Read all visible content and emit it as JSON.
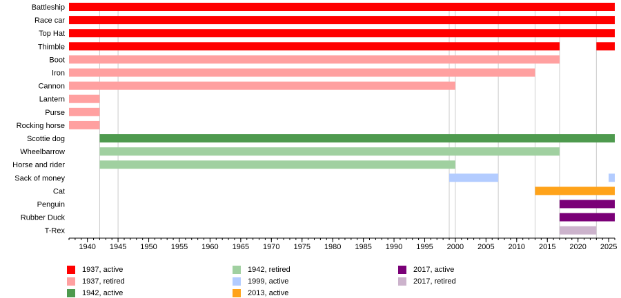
{
  "chart_data": {
    "type": "timeline",
    "x_range": [
      1937,
      2026
    ],
    "x_ticks": [
      "1940",
      "1945",
      "1950",
      "1955",
      "1960",
      "1965",
      "1970",
      "1975",
      "1980",
      "1985",
      "1990",
      "1995",
      "2000",
      "2005",
      "2010",
      "2015",
      "2020",
      "2025"
    ],
    "categories": [
      "Battleship",
      "Race car",
      "Top Hat",
      "Thimble",
      "Boot",
      "Iron",
      "Cannon",
      "Lantern",
      "Purse",
      "Rocking horse",
      "Scottie dog",
      "Wheelbarrow",
      "Horse and rider",
      "Sack of money",
      "Cat",
      "Penguin",
      "Rubber Duck",
      "T-Rex"
    ],
    "bars": [
      {
        "token": "Battleship",
        "start": 1937,
        "end": 2026,
        "group": "1937, active"
      },
      {
        "token": "Race car",
        "start": 1937,
        "end": 2026,
        "group": "1937, active"
      },
      {
        "token": "Top Hat",
        "start": 1937,
        "end": 2026,
        "group": "1937, active"
      },
      {
        "token": "Thimble",
        "start": 1937,
        "end": 2017,
        "group": "1937, active"
      },
      {
        "token": "Thimble",
        "start": 2023,
        "end": 2026,
        "group": "1937, active"
      },
      {
        "token": "Boot",
        "start": 1937,
        "end": 2017,
        "group": "1937, retired"
      },
      {
        "token": "Iron",
        "start": 1937,
        "end": 2013,
        "group": "1937, retired"
      },
      {
        "token": "Cannon",
        "start": 1937,
        "end": 2000,
        "group": "1937, retired"
      },
      {
        "token": "Lantern",
        "start": 1937,
        "end": 1942,
        "group": "1937, retired"
      },
      {
        "token": "Purse",
        "start": 1937,
        "end": 1942,
        "group": "1937, retired"
      },
      {
        "token": "Rocking horse",
        "start": 1937,
        "end": 1942,
        "group": "1937, retired"
      },
      {
        "token": "Scottie dog",
        "start": 1942,
        "end": 2026,
        "group": "1942, active"
      },
      {
        "token": "Wheelbarrow",
        "start": 1942,
        "end": 2017,
        "group": "1942, retired"
      },
      {
        "token": "Horse and rider",
        "start": 1942,
        "end": 2000,
        "group": "1942, retired"
      },
      {
        "token": "Sack of money",
        "start": 1999,
        "end": 2007,
        "group": "1999, active"
      },
      {
        "token": "Sack of money",
        "start": 2025,
        "end": 2026,
        "group": "1999, active"
      },
      {
        "token": "Cat",
        "start": 2013,
        "end": 2026,
        "group": "2013, active"
      },
      {
        "token": "Penguin",
        "start": 2017,
        "end": 2026,
        "group": "2017, active"
      },
      {
        "token": "Rubber Duck",
        "start": 2017,
        "end": 2026,
        "group": "2017, active"
      },
      {
        "token": "T-Rex",
        "start": 2017,
        "end": 2023,
        "group": "2017, retired"
      }
    ],
    "grid_years": [
      1942,
      1945,
      1999,
      2000,
      2007,
      2013,
      2017,
      2023
    ],
    "legend": [
      {
        "label": "1937, active",
        "color": "#ff0000"
      },
      {
        "label": "1937, retired",
        "color": "#ffa0a0"
      },
      {
        "label": "1942, active",
        "color": "#4e9a4e"
      },
      {
        "label": "1942, retired",
        "color": "#a0d0a0"
      },
      {
        "label": "1999, active",
        "color": "#b3ccff"
      },
      {
        "label": "2013, active",
        "color": "#ffa31a"
      },
      {
        "label": "2017, active",
        "color": "#7a0077"
      },
      {
        "label": "2017, retired",
        "color": "#ccb3cc"
      }
    ]
  }
}
